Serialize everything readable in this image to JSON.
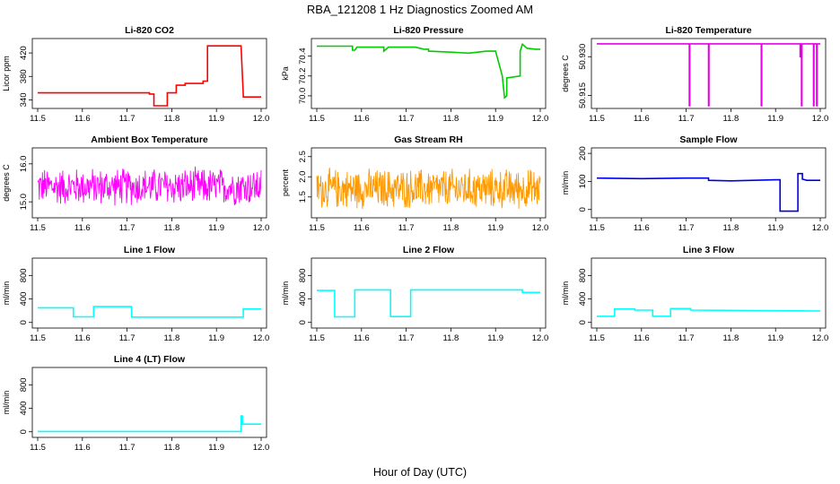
{
  "figure": {
    "title": "RBA_121208  1 Hz Diagnostics Zoomed AM",
    "xlabel": "Hour of Day (UTC)"
  },
  "chart_data": [
    {
      "type": "line",
      "title": "Li-820 CO2",
      "ylabel": "Licor ppm",
      "color": "#ff0000",
      "xlim": [
        11.5,
        12.0
      ],
      "ylim": [
        330,
        440
      ],
      "xticks": [
        "11.5",
        "11.6",
        "11.7",
        "11.8",
        "11.9",
        "12.0"
      ],
      "yticks": [
        340,
        380,
        420
      ],
      "x": [
        11.5,
        11.75,
        11.75,
        11.76,
        11.76,
        11.79,
        11.79,
        11.81,
        11.81,
        11.83,
        11.83,
        11.87,
        11.87,
        11.88,
        11.88,
        11.955,
        11.955,
        11.96,
        11.96,
        12.0
      ],
      "y": [
        352,
        352,
        350,
        350,
        330,
        330,
        352,
        352,
        365,
        365,
        368,
        368,
        372,
        372,
        432,
        432,
        432,
        348,
        345,
        345
      ]
    },
    {
      "type": "line",
      "title": "Li-820 Pressure",
      "ylabel": "kPa",
      "color": "#00cc00",
      "xlim": [
        11.5,
        12.0
      ],
      "ylim": [
        69.9,
        70.55
      ],
      "xticks": [
        "11.5",
        "11.6",
        "11.7",
        "11.8",
        "11.9",
        "12.0"
      ],
      "yticks": [
        "70.0",
        "70.2",
        "70.4"
      ],
      "x": [
        11.5,
        11.58,
        11.58,
        11.585,
        11.59,
        11.65,
        11.65,
        11.655,
        11.66,
        11.72,
        11.74,
        11.75,
        11.75,
        11.8,
        11.84,
        11.86,
        11.88,
        11.9,
        11.915,
        11.92,
        11.925,
        11.925,
        11.955,
        11.955,
        11.96,
        11.97,
        11.99,
        12.0
      ],
      "y": [
        70.5,
        70.5,
        70.46,
        70.46,
        70.49,
        70.49,
        70.45,
        70.47,
        70.49,
        70.49,
        70.47,
        70.47,
        70.45,
        70.44,
        70.43,
        70.44,
        70.45,
        70.45,
        70.2,
        69.98,
        70.0,
        70.18,
        70.2,
        70.45,
        70.52,
        70.48,
        70.47,
        70.47
      ]
    },
    {
      "type": "line",
      "title": "Li-820 Temperature",
      "ylabel": "degrees C",
      "color": "#e600e6",
      "xlim": [
        11.5,
        12.0
      ],
      "ylim": [
        50.911,
        50.936
      ],
      "xticks": [
        "11.5",
        "11.6",
        "11.7",
        "11.8",
        "11.9",
        "12.0"
      ],
      "yticks": [
        "50.915",
        "50.930"
      ],
      "x": [
        11.5,
        11.707,
        11.707,
        11.708,
        11.708,
        11.75,
        11.75,
        11.751,
        11.751,
        11.868,
        11.868,
        11.869,
        11.869,
        11.955,
        11.955,
        11.956,
        11.956,
        11.958,
        11.958,
        11.959,
        11.959,
        11.985,
        11.985,
        11.986,
        11.986,
        11.992,
        11.992,
        11.993,
        11.993,
        12.0
      ],
      "y": [
        50.935,
        50.935,
        50.911,
        50.911,
        50.935,
        50.935,
        50.911,
        50.911,
        50.935,
        50.935,
        50.911,
        50.911,
        50.935,
        50.935,
        50.93,
        50.93,
        50.935,
        50.935,
        50.911,
        50.911,
        50.935,
        50.935,
        50.911,
        50.911,
        50.935,
        50.935,
        50.911,
        50.911,
        50.935,
        50.935
      ]
    },
    {
      "type": "line",
      "title": "Ambient Box Temperature",
      "ylabel": "degrees C",
      "color": "#ff00ff",
      "xlim": [
        11.5,
        12.0
      ],
      "ylim": [
        14.65,
        16.35
      ],
      "xticks": [
        "11.5",
        "11.6",
        "11.7",
        "11.8",
        "11.9",
        "12.0"
      ],
      "yticks": [
        "15.0",
        "16.0"
      ],
      "noise": {
        "center": 15.4,
        "amplitude": 0.55,
        "points": 420
      }
    },
    {
      "type": "line",
      "title": "Gas Stream RH",
      "ylabel": "percent",
      "color": "#ff9900",
      "xlim": [
        11.5,
        12.0
      ],
      "ylim": [
        1.05,
        2.65
      ],
      "xticks": [
        "11.5",
        "11.6",
        "11.7",
        "11.8",
        "11.9",
        "12.0"
      ],
      "yticks": [
        "1.5",
        "2.0",
        "2.5"
      ],
      "noise": {
        "center": 1.7,
        "amplitude": 0.55,
        "points": 500
      }
    },
    {
      "type": "line",
      "title": "Sample Flow",
      "ylabel": "ml/min",
      "color": "#0000e6",
      "xlim": [
        11.5,
        12.0
      ],
      "ylim": [
        -20,
        210
      ],
      "xticks": [
        "11.5",
        "11.6",
        "11.7",
        "11.8",
        "11.9",
        "12.0"
      ],
      "yticks": [
        0,
        100,
        200
      ],
      "x": [
        11.5,
        11.6,
        11.7,
        11.75,
        11.75,
        11.8,
        11.85,
        11.9,
        11.91,
        11.91,
        11.95,
        11.95,
        11.96,
        11.96,
        11.97,
        12.0
      ],
      "y": [
        112,
        110,
        112,
        112,
        104,
        102,
        104,
        106,
        106,
        -6,
        -6,
        128,
        128,
        108,
        104,
        104
      ]
    },
    {
      "type": "line",
      "title": "Line 1 Flow",
      "ylabel": "ml/min",
      "color": "#00ffff",
      "xlim": [
        11.5,
        12.0
      ],
      "ylim": [
        -50,
        1050
      ],
      "xticks": [
        "11.5",
        "11.6",
        "11.7",
        "11.8",
        "11.9",
        "12.0"
      ],
      "yticks": [
        0,
        400,
        800
      ],
      "x": [
        11.5,
        11.58,
        11.58,
        11.625,
        11.625,
        11.71,
        11.71,
        11.96,
        11.96,
        12.0
      ],
      "y": [
        250,
        250,
        95,
        95,
        270,
        270,
        90,
        90,
        230,
        230
      ]
    },
    {
      "type": "line",
      "title": "Line 2 Flow",
      "ylabel": "ml/min",
      "color": "#00ffff",
      "xlim": [
        11.5,
        12.0
      ],
      "ylim": [
        -50,
        1050
      ],
      "xticks": [
        "11.5",
        "11.6",
        "11.7",
        "11.8",
        "11.9",
        "12.0"
      ],
      "yticks": [
        0,
        400,
        800
      ],
      "x": [
        11.5,
        11.54,
        11.54,
        11.585,
        11.585,
        11.665,
        11.665,
        11.71,
        11.71,
        11.96,
        11.96,
        12.0
      ],
      "y": [
        545,
        545,
        95,
        95,
        555,
        555,
        100,
        100,
        555,
        555,
        510,
        510
      ]
    },
    {
      "type": "line",
      "title": "Line 3 Flow",
      "ylabel": "ml/min",
      "color": "#00ffff",
      "xlim": [
        11.5,
        12.0
      ],
      "ylim": [
        -50,
        1050
      ],
      "xticks": [
        "11.5",
        "11.6",
        "11.7",
        "11.8",
        "11.9",
        "12.0"
      ],
      "yticks": [
        0,
        400,
        800
      ],
      "x": [
        11.5,
        11.54,
        11.54,
        11.585,
        11.585,
        11.625,
        11.625,
        11.665,
        11.665,
        11.71,
        11.71,
        12.0
      ],
      "y": [
        105,
        105,
        230,
        230,
        210,
        210,
        105,
        105,
        235,
        235,
        210,
        195
      ]
    },
    {
      "type": "line",
      "title": "Line 4 (LT) Flow",
      "ylabel": "ml/min",
      "color": "#00ffff",
      "xlim": [
        11.5,
        12.0
      ],
      "ylim": [
        -50,
        1050
      ],
      "xticks": [
        "11.5",
        "11.6",
        "11.7",
        "11.8",
        "11.9",
        "12.0"
      ],
      "yticks": [
        0,
        400,
        800
      ],
      "x": [
        11.5,
        11.955,
        11.955,
        11.958,
        11.958,
        11.96,
        11.96,
        12.0
      ],
      "y": [
        5,
        5,
        270,
        270,
        130,
        130,
        130,
        130
      ]
    }
  ]
}
